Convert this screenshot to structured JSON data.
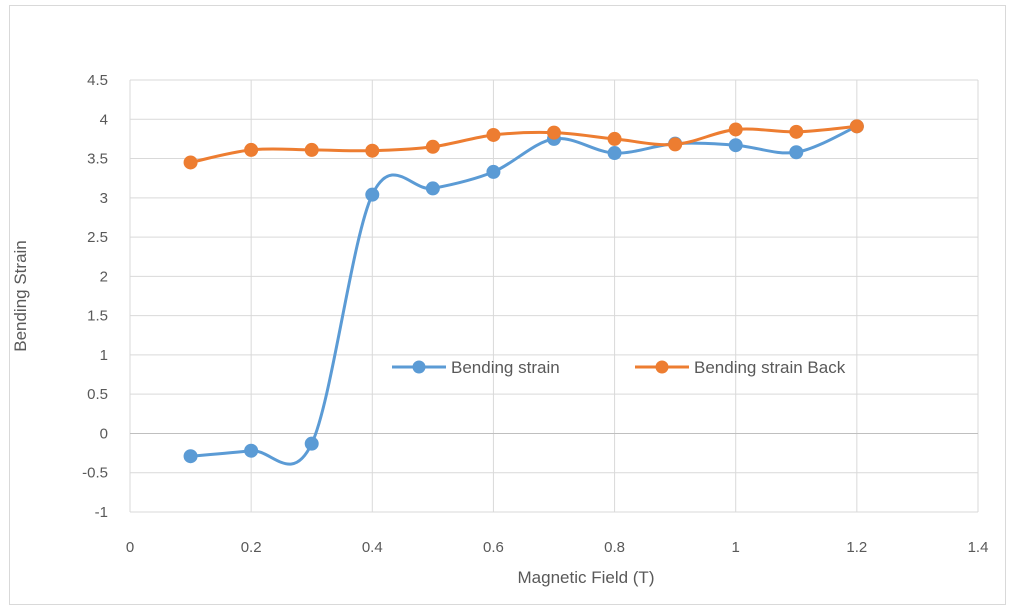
{
  "chart_data": {
    "type": "line",
    "title": "",
    "xlabel": "Magnetic Field (T)",
    "ylabel": "Bending Strain",
    "xlim": [
      0,
      1.4
    ],
    "ylim": [
      -1,
      4.5
    ],
    "x_ticks": [
      "0",
      "0.2",
      "0.4",
      "0.6",
      "0.8",
      "1",
      "1.2",
      "1.4"
    ],
    "y_ticks": [
      "4.5",
      "4",
      "3.5",
      "3",
      "2.5",
      "2",
      "1.5",
      "1",
      "0.5",
      "0",
      "-0.5",
      "-1"
    ],
    "grid": true,
    "legend_position": "center-right",
    "smoothed": true,
    "series": [
      {
        "name": "Bending strain",
        "color": "#5b9bd5",
        "x": [
          0.1,
          0.2,
          0.3,
          0.4,
          0.5,
          0.6,
          0.7,
          0.8,
          0.9,
          1.0,
          1.1,
          1.2
        ],
        "values": [
          -0.29,
          -0.22,
          -0.13,
          3.04,
          3.12,
          3.33,
          3.75,
          3.57,
          3.69,
          3.67,
          3.58,
          3.91
        ]
      },
      {
        "name": "Bending strain Back",
        "color": "#ed7d31",
        "x": [
          0.1,
          0.2,
          0.3,
          0.4,
          0.5,
          0.6,
          0.7,
          0.8,
          0.9,
          1.0,
          1.1,
          1.2
        ],
        "values": [
          3.45,
          3.61,
          3.61,
          3.6,
          3.65,
          3.8,
          3.83,
          3.75,
          3.68,
          3.87,
          3.84,
          3.91
        ]
      }
    ]
  }
}
